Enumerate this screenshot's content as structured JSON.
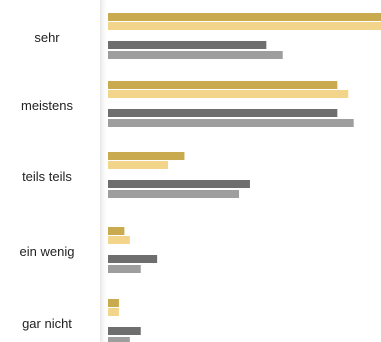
{
  "chart_data": {
    "type": "bar",
    "orientation": "horizontal",
    "categories": [
      "sehr",
      "meistens",
      "teils teils",
      "ein wenig",
      "gar nicht"
    ],
    "series": [
      {
        "values": [
          50,
          42,
          14,
          3,
          2
        ]
      },
      {
        "values": [
          50,
          44,
          11,
          4,
          2
        ]
      },
      {
        "values": [
          29,
          42,
          26,
          9,
          6
        ]
      },
      {
        "values": [
          32,
          45,
          24,
          6,
          4
        ]
      }
    ],
    "xlim": [
      0,
      50
    ],
    "grid": false,
    "legend": "none",
    "colors": [
      "#C9AA4E",
      "#F2D48A",
      "#6E6E6E",
      "#9E9E9E"
    ]
  }
}
